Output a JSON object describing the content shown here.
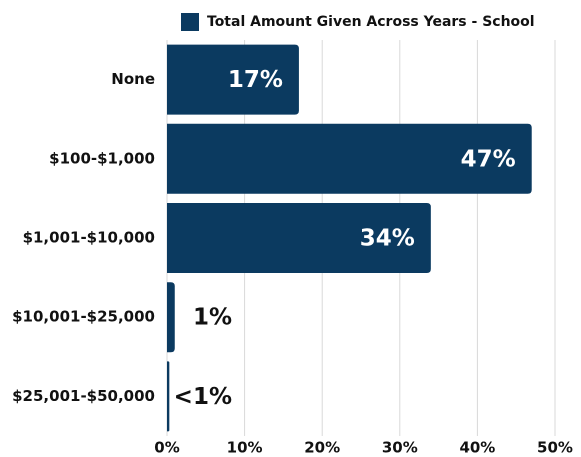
{
  "chart_data": {
    "type": "bar",
    "orientation": "horizontal",
    "categories": [
      "None",
      "$100-$1,000",
      "$1,001-$10,000",
      "$10,001-$25,000",
      "$25,001-$50,000"
    ],
    "series": [
      {
        "name": "Total Amount Given Across Years - School",
        "color": "#0b3a60",
        "values": [
          17,
          47,
          34,
          1,
          0.3
        ],
        "value_labels": [
          "17%",
          "47%",
          "34%",
          "1%",
          "<1%"
        ]
      }
    ],
    "xlim": [
      0,
      50
    ],
    "xticks": [
      {
        "value": 0,
        "label": "0%"
      },
      {
        "value": 10,
        "label": "10%"
      },
      {
        "value": 20,
        "label": "20%"
      },
      {
        "value": 30,
        "label": "30%"
      },
      {
        "value": 40,
        "label": "40%"
      },
      {
        "value": 50,
        "label": "50%"
      }
    ],
    "grid": true,
    "legend": "top"
  }
}
